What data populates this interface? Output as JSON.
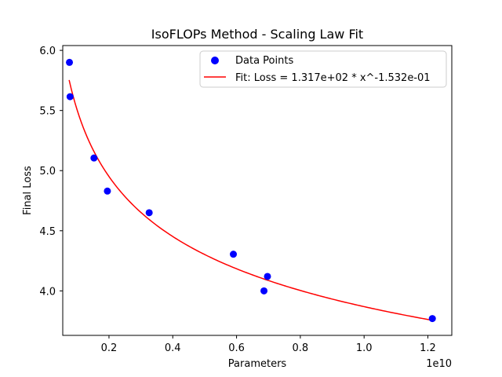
{
  "chart_data": {
    "type": "scatter",
    "title": "IsoFLOPs Method - Scaling Law Fit",
    "xlabel": "Parameters",
    "ylabel": "Final Loss",
    "x_offset_label": "1e10",
    "x_tick_labels": [
      "0.2",
      "0.4",
      "0.6",
      "0.8",
      "1.0",
      "1.2"
    ],
    "y_tick_labels": [
      "4.0",
      "4.5",
      "5.0",
      "5.5",
      "6.0"
    ],
    "x_ticks": [
      0.2,
      0.4,
      0.6,
      0.8,
      1.0,
      1.2
    ],
    "y_ticks": [
      4.0,
      4.5,
      5.0,
      5.5,
      6.0
    ],
    "xlim": [
      0.055,
      1.275
    ],
    "ylim": [
      3.63,
      6.04
    ],
    "grid": false,
    "legend_position": "top-right",
    "series": [
      {
        "name": "Data Points",
        "kind": "scatter",
        "color": "#0000ff",
        "x": [
          0.076,
          0.078,
          0.153,
          0.195,
          0.326,
          0.59,
          0.686,
          0.697,
          1.214
        ],
        "y": [
          5.9,
          5.615,
          5.105,
          4.83,
          4.65,
          4.305,
          4.0,
          4.12,
          3.77
        ]
      },
      {
        "name": "Fit: Loss = 1.317e+02 * x^-1.532e-01",
        "kind": "line",
        "color": "#ff0000",
        "coefficient": 131.7,
        "exponent": -0.1532,
        "x_unit_scale": 10000000000.0,
        "x_range": [
          0.075,
          1.214
        ]
      }
    ]
  }
}
